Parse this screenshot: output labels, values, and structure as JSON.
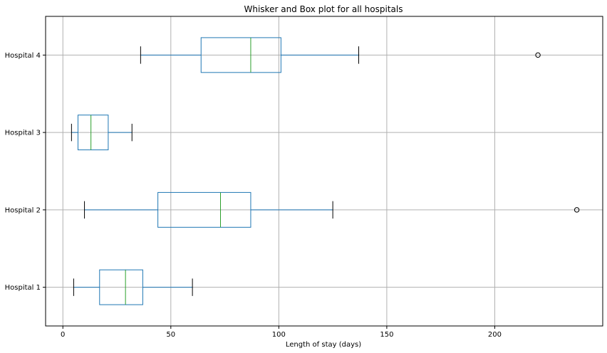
{
  "chart_data": {
    "type": "box",
    "orientation": "horizontal",
    "title": "Whisker and Box plot for all hospitals",
    "xlabel": "Length of stay (days)",
    "ylabel": "",
    "xlim": [
      -8,
      250
    ],
    "xticks": [
      0,
      50,
      100,
      150,
      200
    ],
    "grid": true,
    "colors": {
      "box": "#1f77b4",
      "median": "#2ca02c",
      "whisker": "#1f77b4",
      "cap": "#000000",
      "flier": "#000000",
      "grid": "#b0b0b0"
    },
    "categories": [
      "Hospital 1",
      "Hospital 2",
      "Hospital 3",
      "Hospital 4"
    ],
    "boxes": [
      {
        "label": "Hospital 1",
        "whislo": 5,
        "q1": 17,
        "med": 29,
        "q3": 37,
        "whishi": 60,
        "fliers": []
      },
      {
        "label": "Hospital 2",
        "whislo": 10,
        "q1": 44,
        "med": 73,
        "q3": 87,
        "whishi": 125,
        "fliers": [
          238
        ]
      },
      {
        "label": "Hospital 3",
        "whislo": 4,
        "q1": 7,
        "med": 13,
        "q3": 21,
        "whishi": 32,
        "fliers": []
      },
      {
        "label": "Hospital 4",
        "whislo": 36,
        "q1": 64,
        "med": 87,
        "q3": 101,
        "whishi": 137,
        "fliers": [
          220
        ]
      }
    ]
  }
}
